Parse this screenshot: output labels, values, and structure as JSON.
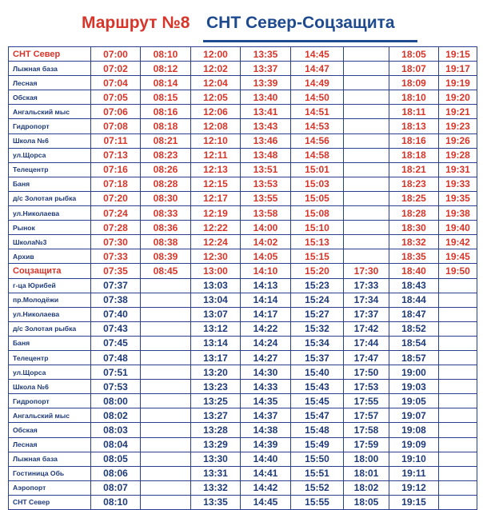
{
  "title": {
    "route": "Маршрут №8",
    "name": "СНТ Север-Соцзащита"
  },
  "columns": 8,
  "rows": [
    {
      "stop": "СНТ Север",
      "times": [
        "07:00",
        "08:10",
        "12:00",
        "13:35",
        "14:45",
        "",
        "18:05",
        "19:15"
      ]
    },
    {
      "stop": "Лыжная база",
      "times": [
        "07:02",
        "08:12",
        "12:02",
        "13:37",
        "14:47",
        "",
        "18:07",
        "19:17"
      ]
    },
    {
      "stop": "Лесная",
      "times": [
        "07:04",
        "08:14",
        "12:04",
        "13:39",
        "14:49",
        "",
        "18:09",
        "19:19"
      ]
    },
    {
      "stop": "Обская",
      "times": [
        "07:05",
        "08:15",
        "12:05",
        "13:40",
        "14:50",
        "",
        "18:10",
        "19:20"
      ]
    },
    {
      "stop": "Ангальский мыс",
      "times": [
        "07:06",
        "08:16",
        "12:06",
        "13:41",
        "14:51",
        "",
        "18:11",
        "19:21"
      ]
    },
    {
      "stop": "Гидропорт",
      "times": [
        "07:08",
        "08:18",
        "12:08",
        "13:43",
        "14:53",
        "",
        "18:13",
        "19:23"
      ]
    },
    {
      "stop": "Школа №6",
      "times": [
        "07:11",
        "08:21",
        "12:10",
        "13:46",
        "14:56",
        "",
        "18:16",
        "19:26"
      ]
    },
    {
      "stop": "ул.Щорса",
      "times": [
        "07:13",
        "08:23",
        "12:11",
        "13:48",
        "14:58",
        "",
        "18:18",
        "19:28"
      ]
    },
    {
      "stop": "Телецентр",
      "times": [
        "07:16",
        "08:26",
        "12:13",
        "13:51",
        "15:01",
        "",
        "18:21",
        "19:31"
      ]
    },
    {
      "stop": "Баня",
      "times": [
        "07:18",
        "08:28",
        "12:15",
        "13:53",
        "15:03",
        "",
        "18:23",
        "19:33"
      ]
    },
    {
      "stop": "д/с Золотая рыбка",
      "times": [
        "07:20",
        "08:30",
        "12:17",
        "13:55",
        "15:05",
        "",
        "18:25",
        "19:35"
      ]
    },
    {
      "stop": "ул.Николаева",
      "times": [
        "07:24",
        "08:33",
        "12:19",
        "13:58",
        "15:08",
        "",
        "18:28",
        "19:38"
      ]
    },
    {
      "stop": "Рынок",
      "times": [
        "07:28",
        "08:36",
        "12:22",
        "14:00",
        "15:10",
        "",
        "18:30",
        "19:40"
      ]
    },
    {
      "stop": "Школа№3",
      "times": [
        "07:30",
        "08:38",
        "12:24",
        "14:02",
        "15:13",
        "",
        "18:32",
        "19:42"
      ]
    },
    {
      "stop": "Архив",
      "times": [
        "07:33",
        "08:39",
        "12:30",
        "14:05",
        "15:15",
        "",
        "18:35",
        "19:45"
      ]
    },
    {
      "stop": "Соцзащита",
      "times": [
        "07:35",
        "08:45",
        "13:00",
        "14:10",
        "15:20",
        "17:30",
        "18:40",
        "19:50"
      ]
    },
    {
      "stop": "г-ца Юрибей",
      "times": [
        "07:37",
        "",
        "13:03",
        "14:13",
        "15:23",
        "17:33",
        "18:43",
        ""
      ]
    },
    {
      "stop": "пр.Молодёжи",
      "times": [
        "07:38",
        "",
        "13:04",
        "14:14",
        "15:24",
        "17:34",
        "18:44",
        ""
      ]
    },
    {
      "stop": "ул.Николаева",
      "times": [
        "07:40",
        "",
        "13:07",
        "14:17",
        "15:27",
        "17:37",
        "18:47",
        ""
      ]
    },
    {
      "stop": "д/с Золотая рыбка",
      "times": [
        "07:43",
        "",
        "13:12",
        "14:22",
        "15:32",
        "17:42",
        "18:52",
        ""
      ]
    },
    {
      "stop": "Баня",
      "times": [
        "07:45",
        "",
        "13:14",
        "14:24",
        "15:34",
        "17:44",
        "18:54",
        ""
      ]
    },
    {
      "stop": "Телецентр",
      "times": [
        "07:48",
        "",
        "13:17",
        "14:27",
        "15:37",
        "17:47",
        "18:57",
        ""
      ]
    },
    {
      "stop": "ул.Щорса",
      "times": [
        "07:51",
        "",
        "13:20",
        "14:30",
        "15:40",
        "17:50",
        "19:00",
        ""
      ]
    },
    {
      "stop": "Школа №6",
      "times": [
        "07:53",
        "",
        "13:23",
        "14:33",
        "15:43",
        "17:53",
        "19:03",
        ""
      ]
    },
    {
      "stop": "Гидропорт",
      "times": [
        "08:00",
        "",
        "13:25",
        "14:35",
        "15:45",
        "17:55",
        "19:05",
        ""
      ]
    },
    {
      "stop": "Ангальский мыс",
      "times": [
        "08:02",
        "",
        "13:27",
        "14:37",
        "15:47",
        "17:57",
        "19:07",
        ""
      ]
    },
    {
      "stop": "Обская",
      "times": [
        "08:03",
        "",
        "13:28",
        "14:38",
        "15:48",
        "17:58",
        "19:08",
        ""
      ]
    },
    {
      "stop": "Лесная",
      "times": [
        "08:04",
        "",
        "13:29",
        "14:39",
        "15:49",
        "17:59",
        "19:09",
        ""
      ]
    },
    {
      "stop": "Лыжная база",
      "times": [
        "08:05",
        "",
        "13:30",
        "14:40",
        "15:50",
        "18:00",
        "19:10",
        ""
      ]
    },
    {
      "stop": "Гостиница Обь",
      "times": [
        "08:06",
        "",
        "13:31",
        "14:41",
        "15:51",
        "18:01",
        "19:11",
        ""
      ]
    },
    {
      "stop": "Аэропорт",
      "times": [
        "08:07",
        "",
        "13:32",
        "14:42",
        "15:52",
        "18:02",
        "19:12",
        ""
      ]
    },
    {
      "stop": "СНТ Север",
      "times": [
        "08:10",
        "",
        "13:35",
        "14:45",
        "15:55",
        "18:05",
        "19:15",
        ""
      ]
    }
  ]
}
